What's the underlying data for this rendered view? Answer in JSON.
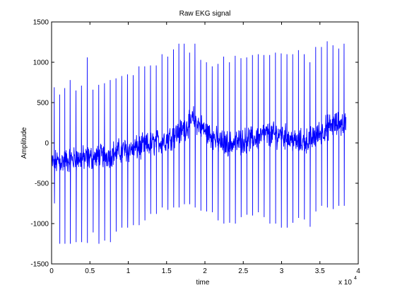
{
  "chart_data": {
    "type": "line",
    "title": "Raw EKG signal",
    "xlabel": "time",
    "ylabel": "Amplitude",
    "x_exponent_label": "x 10",
    "x_exponent_power": "4",
    "xlim": [
      0,
      40000
    ],
    "ylim": [
      -1500,
      1500
    ],
    "xticks": [
      0,
      5000,
      10000,
      15000,
      20000,
      25000,
      30000,
      35000,
      40000
    ],
    "xtick_labels": [
      "0",
      "0.5",
      "1",
      "1.5",
      "2",
      "2.5",
      "3",
      "3.5",
      "4"
    ],
    "yticks": [
      -1500,
      -1000,
      -500,
      0,
      500,
      1000,
      1500
    ],
    "ytick_labels": [
      "-1500",
      "-1000",
      "-500",
      "0",
      "500",
      "1000",
      "1500"
    ],
    "grid": false,
    "series": [
      {
        "color": "#0000ff",
        "x_range": [
          0,
          38400
        ],
        "beats": {
          "x": [
            350,
            1050,
            1720,
            2420,
            3180,
            3900,
            4650,
            5400,
            6150,
            6900,
            7650,
            8400,
            9150,
            9900,
            10650,
            11400,
            12150,
            12900,
            13650,
            14400,
            15150,
            15900,
            16600,
            17300,
            18000,
            18700,
            19450,
            20200,
            20950,
            21700,
            22450,
            23200,
            23950,
            24700,
            25450,
            26200,
            26950,
            27700,
            28450,
            29200,
            29950,
            30700,
            31450,
            32200,
            32950,
            33700,
            34450,
            35200,
            35950,
            36700,
            37450,
            38150
          ],
          "peak": [
            690,
            600,
            680,
            780,
            650,
            710,
            1060,
            660,
            720,
            740,
            780,
            800,
            830,
            850,
            840,
            950,
            950,
            960,
            960,
            1100,
            1070,
            1160,
            1230,
            1230,
            1120,
            1230,
            1030,
            1000,
            950,
            980,
            1070,
            1000,
            1080,
            1050,
            1060,
            1090,
            1100,
            1090,
            1090,
            1120,
            1110,
            1100,
            1100,
            1150,
            1100,
            1000,
            1190,
            1190,
            1260,
            1210,
            1170,
            1230
          ],
          "trough": [
            -750,
            -1250,
            -1250,
            -1250,
            -1230,
            -1230,
            -1240,
            -1110,
            -1250,
            -1210,
            -1230,
            -1100,
            -1050,
            -1050,
            -1020,
            -1020,
            -960,
            -880,
            -880,
            -800,
            -830,
            -800,
            -800,
            -760,
            -760,
            -800,
            -840,
            -850,
            -860,
            -960,
            -1000,
            -990,
            -1000,
            -920,
            -890,
            -900,
            -860,
            -920,
            -1000,
            -1000,
            -1050,
            -1050,
            -990,
            -930,
            -950,
            -1040,
            -850,
            -780,
            -800,
            -820,
            -780,
            -780
          ]
        },
        "baseline": {
          "x": [
            0,
            3000,
            6000,
            9000,
            12000,
            15000,
            17000,
            18500,
            20000,
            22000,
            24000,
            26000,
            28000,
            30000,
            32000,
            34000,
            36000,
            38400
          ],
          "y": [
            -250,
            -200,
            -180,
            -100,
            -50,
            50,
            150,
            300,
            150,
            0,
            0,
            50,
            100,
            100,
            0,
            50,
            200,
            250
          ]
        }
      }
    ]
  }
}
